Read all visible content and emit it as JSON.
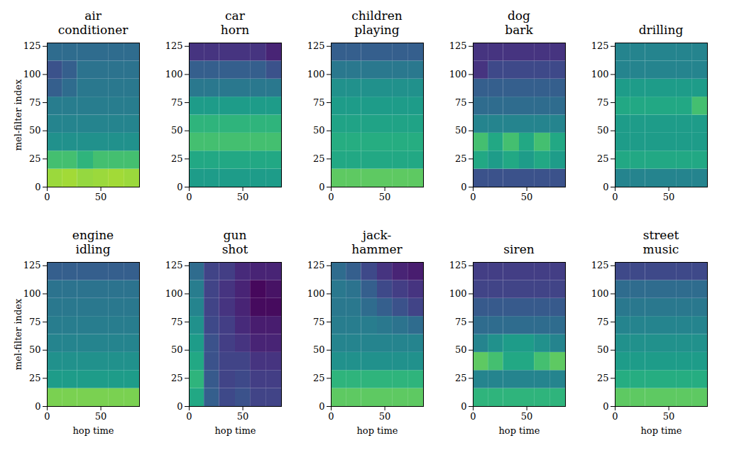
{
  "chart_data": [
    {
      "type": "heatmap",
      "title": "air\nconditioner",
      "ylabel": "mel-filter index",
      "xlim": [
        0,
        86
      ],
      "ylim": [
        0,
        128
      ],
      "xticks": [
        0,
        50
      ],
      "yticks": [
        0,
        25,
        50,
        75,
        100,
        125
      ],
      "x_edges": [
        0,
        14,
        28,
        43,
        57,
        72,
        86
      ],
      "y_edges": [
        0,
        16,
        32,
        48,
        64,
        80,
        96,
        112,
        128
      ],
      "color": "viridis",
      "clim": [
        0,
        1
      ],
      "values": [
        [
          0.85,
          0.86,
          0.84,
          0.85,
          0.86,
          0.85
        ],
        [
          0.7,
          0.7,
          0.65,
          0.7,
          0.7,
          0.7
        ],
        [
          0.5,
          0.5,
          0.5,
          0.5,
          0.5,
          0.5
        ],
        [
          0.45,
          0.45,
          0.45,
          0.45,
          0.45,
          0.45
        ],
        [
          0.42,
          0.42,
          0.42,
          0.42,
          0.42,
          0.42
        ],
        [
          0.3,
          0.35,
          0.4,
          0.4,
          0.4,
          0.4
        ],
        [
          0.25,
          0.3,
          0.38,
          0.38,
          0.38,
          0.38
        ],
        [
          0.35,
          0.35,
          0.35,
          0.35,
          0.35,
          0.35
        ]
      ]
    },
    {
      "type": "heatmap",
      "title": "car\nhorn",
      "xlim": [
        0,
        86
      ],
      "ylim": [
        0,
        128
      ],
      "xticks": [
        0,
        50
      ],
      "yticks": [
        0,
        25,
        50,
        75,
        100,
        125
      ],
      "x_edges": [
        0,
        14,
        28,
        43,
        57,
        72,
        86
      ],
      "y_edges": [
        0,
        16,
        32,
        48,
        64,
        80,
        96,
        112,
        128
      ],
      "color": "viridis",
      "clim": [
        0,
        1
      ],
      "values": [
        [
          0.55,
          0.55,
          0.55,
          0.55,
          0.55,
          0.55
        ],
        [
          0.6,
          0.6,
          0.6,
          0.6,
          0.6,
          0.6
        ],
        [
          0.7,
          0.7,
          0.7,
          0.7,
          0.7,
          0.7
        ],
        [
          0.65,
          0.65,
          0.65,
          0.65,
          0.65,
          0.65
        ],
        [
          0.55,
          0.55,
          0.55,
          0.55,
          0.55,
          0.55
        ],
        [
          0.4,
          0.4,
          0.4,
          0.4,
          0.4,
          0.4
        ],
        [
          0.3,
          0.3,
          0.3,
          0.3,
          0.3,
          0.25
        ],
        [
          0.15,
          0.15,
          0.15,
          0.15,
          0.15,
          0.1
        ]
      ]
    },
    {
      "type": "heatmap",
      "title": "children\nplaying",
      "xlim": [
        0,
        86
      ],
      "ylim": [
        0,
        128
      ],
      "xticks": [
        0,
        50
      ],
      "yticks": [
        0,
        25,
        50,
        75,
        100,
        125
      ],
      "x_edges": [
        0,
        14,
        28,
        43,
        57,
        72,
        86
      ],
      "y_edges": [
        0,
        16,
        32,
        48,
        64,
        80,
        96,
        112,
        128
      ],
      "color": "viridis",
      "clim": [
        0,
        1
      ],
      "values": [
        [
          0.75,
          0.75,
          0.75,
          0.75,
          0.75,
          0.75
        ],
        [
          0.6,
          0.6,
          0.6,
          0.6,
          0.6,
          0.6
        ],
        [
          0.62,
          0.62,
          0.62,
          0.62,
          0.62,
          0.62
        ],
        [
          0.58,
          0.58,
          0.58,
          0.58,
          0.58,
          0.58
        ],
        [
          0.55,
          0.55,
          0.55,
          0.55,
          0.55,
          0.55
        ],
        [
          0.5,
          0.5,
          0.5,
          0.5,
          0.5,
          0.5
        ],
        [
          0.4,
          0.4,
          0.4,
          0.4,
          0.4,
          0.4
        ],
        [
          0.3,
          0.3,
          0.3,
          0.3,
          0.3,
          0.3
        ]
      ]
    },
    {
      "type": "heatmap",
      "title": "dog\nbark",
      "xlim": [
        0,
        86
      ],
      "ylim": [
        0,
        128
      ],
      "xticks": [
        0,
        50
      ],
      "yticks": [
        0,
        25,
        50,
        75,
        100,
        125
      ],
      "x_edges": [
        0,
        14,
        28,
        43,
        57,
        72,
        86
      ],
      "y_edges": [
        0,
        16,
        32,
        48,
        64,
        80,
        96,
        112,
        128
      ],
      "color": "viridis",
      "clim": [
        0,
        1
      ],
      "values": [
        [
          0.25,
          0.25,
          0.25,
          0.25,
          0.25,
          0.25
        ],
        [
          0.6,
          0.55,
          0.6,
          0.55,
          0.6,
          0.55
        ],
        [
          0.7,
          0.6,
          0.7,
          0.6,
          0.7,
          0.6
        ],
        [
          0.45,
          0.45,
          0.45,
          0.45,
          0.45,
          0.45
        ],
        [
          0.35,
          0.35,
          0.35,
          0.35,
          0.35,
          0.35
        ],
        [
          0.3,
          0.3,
          0.3,
          0.3,
          0.3,
          0.3
        ],
        [
          0.15,
          0.22,
          0.22,
          0.22,
          0.22,
          0.22
        ],
        [
          0.15,
          0.15,
          0.15,
          0.15,
          0.15,
          0.15
        ]
      ]
    },
    {
      "type": "heatmap",
      "title": "drilling",
      "xlim": [
        0,
        86
      ],
      "ylim": [
        0,
        128
      ],
      "xticks": [
        0,
        50
      ],
      "yticks": [
        0,
        25,
        50,
        75,
        100,
        125
      ],
      "x_edges": [
        0,
        14,
        28,
        43,
        57,
        72,
        86
      ],
      "y_edges": [
        0,
        16,
        32,
        48,
        64,
        80,
        96,
        112,
        128
      ],
      "color": "viridis",
      "clim": [
        0,
        1
      ],
      "values": [
        [
          0.45,
          0.45,
          0.45,
          0.45,
          0.45,
          0.45
        ],
        [
          0.6,
          0.6,
          0.6,
          0.6,
          0.6,
          0.6
        ],
        [
          0.55,
          0.55,
          0.55,
          0.55,
          0.55,
          0.55
        ],
        [
          0.55,
          0.55,
          0.55,
          0.55,
          0.55,
          0.55
        ],
        [
          0.6,
          0.6,
          0.6,
          0.6,
          0.6,
          0.7
        ],
        [
          0.55,
          0.55,
          0.55,
          0.55,
          0.55,
          0.55
        ],
        [
          0.45,
          0.45,
          0.45,
          0.45,
          0.45,
          0.45
        ],
        [
          0.45,
          0.45,
          0.45,
          0.45,
          0.45,
          0.45
        ]
      ]
    },
    {
      "type": "heatmap",
      "title": "engine\nidling",
      "xlabel": "hop time",
      "ylabel": "mel-filter index",
      "xlim": [
        0,
        86
      ],
      "ylim": [
        0,
        128
      ],
      "xticks": [
        0,
        50
      ],
      "yticks": [
        0,
        25,
        50,
        75,
        100,
        125
      ],
      "x_edges": [
        0,
        14,
        28,
        43,
        57,
        72,
        86
      ],
      "y_edges": [
        0,
        16,
        32,
        48,
        64,
        80,
        96,
        112,
        128
      ],
      "color": "viridis",
      "clim": [
        0,
        1
      ],
      "values": [
        [
          0.8,
          0.8,
          0.8,
          0.8,
          0.8,
          0.8
        ],
        [
          0.55,
          0.55,
          0.55,
          0.55,
          0.55,
          0.55
        ],
        [
          0.5,
          0.5,
          0.5,
          0.5,
          0.5,
          0.5
        ],
        [
          0.45,
          0.45,
          0.45,
          0.45,
          0.45,
          0.45
        ],
        [
          0.42,
          0.42,
          0.42,
          0.42,
          0.42,
          0.42
        ],
        [
          0.4,
          0.4,
          0.4,
          0.4,
          0.4,
          0.4
        ],
        [
          0.38,
          0.38,
          0.38,
          0.38,
          0.38,
          0.38
        ],
        [
          0.3,
          0.3,
          0.3,
          0.3,
          0.3,
          0.3
        ]
      ]
    },
    {
      "type": "heatmap",
      "title": "gun\nshot",
      "xlabel": "hop time",
      "xlim": [
        0,
        86
      ],
      "ylim": [
        0,
        128
      ],
      "xticks": [
        0,
        50
      ],
      "yticks": [
        0,
        25,
        50,
        75,
        100,
        125
      ],
      "x_edges": [
        0,
        14,
        28,
        43,
        57,
        72,
        86
      ],
      "y_edges": [
        0,
        16,
        32,
        48,
        64,
        80,
        96,
        112,
        128
      ],
      "color": "viridis",
      "clim": [
        0,
        1
      ],
      "values": [
        [
          0.6,
          0.3,
          0.22,
          0.25,
          0.2,
          0.2
        ],
        [
          0.65,
          0.28,
          0.2,
          0.22,
          0.18,
          0.18
        ],
        [
          0.6,
          0.25,
          0.2,
          0.2,
          0.15,
          0.15
        ],
        [
          0.55,
          0.25,
          0.18,
          0.15,
          0.1,
          0.1
        ],
        [
          0.5,
          0.22,
          0.18,
          0.12,
          0.08,
          0.08
        ],
        [
          0.45,
          0.2,
          0.15,
          0.1,
          0.03,
          0.03
        ],
        [
          0.42,
          0.2,
          0.15,
          0.1,
          0.02,
          0.05
        ],
        [
          0.35,
          0.2,
          0.18,
          0.12,
          0.1,
          0.1
        ]
      ]
    },
    {
      "type": "heatmap",
      "title": "jack-\nhammer",
      "xlabel": "hop time",
      "xlim": [
        0,
        86
      ],
      "ylim": [
        0,
        128
      ],
      "xticks": [
        0,
        50
      ],
      "yticks": [
        0,
        25,
        50,
        75,
        100,
        125
      ],
      "x_edges": [
        0,
        14,
        28,
        43,
        57,
        72,
        86
      ],
      "y_edges": [
        0,
        16,
        32,
        48,
        64,
        80,
        96,
        112,
        128
      ],
      "color": "viridis",
      "clim": [
        0,
        1
      ],
      "values": [
        [
          0.75,
          0.75,
          0.75,
          0.75,
          0.75,
          0.75
        ],
        [
          0.65,
          0.65,
          0.65,
          0.65,
          0.65,
          0.65
        ],
        [
          0.5,
          0.5,
          0.5,
          0.5,
          0.5,
          0.5
        ],
        [
          0.45,
          0.45,
          0.45,
          0.45,
          0.45,
          0.45
        ],
        [
          0.42,
          0.42,
          0.42,
          0.4,
          0.38,
          0.35
        ],
        [
          0.4,
          0.4,
          0.35,
          0.3,
          0.25,
          0.2
        ],
        [
          0.4,
          0.38,
          0.3,
          0.22,
          0.18,
          0.15
        ],
        [
          0.35,
          0.3,
          0.22,
          0.15,
          0.1,
          0.08
        ]
      ]
    },
    {
      "type": "heatmap",
      "title": "siren",
      "xlabel": "hop time",
      "xlim": [
        0,
        86
      ],
      "ylim": [
        0,
        128
      ],
      "xticks": [
        0,
        50
      ],
      "yticks": [
        0,
        25,
        50,
        75,
        100,
        125
      ],
      "x_edges": [
        0,
        14,
        28,
        43,
        57,
        72,
        86
      ],
      "y_edges": [
        0,
        16,
        32,
        48,
        64,
        80,
        96,
        112,
        128
      ],
      "color": "viridis",
      "clim": [
        0,
        1
      ],
      "values": [
        [
          0.65,
          0.65,
          0.65,
          0.65,
          0.65,
          0.65
        ],
        [
          0.45,
          0.45,
          0.45,
          0.45,
          0.45,
          0.45
        ],
        [
          0.75,
          0.7,
          0.6,
          0.6,
          0.7,
          0.75
        ],
        [
          0.45,
          0.5,
          0.55,
          0.55,
          0.5,
          0.45
        ],
        [
          0.35,
          0.35,
          0.35,
          0.35,
          0.35,
          0.35
        ],
        [
          0.28,
          0.28,
          0.28,
          0.28,
          0.28,
          0.28
        ],
        [
          0.2,
          0.2,
          0.2,
          0.2,
          0.2,
          0.2
        ],
        [
          0.18,
          0.18,
          0.18,
          0.18,
          0.18,
          0.18
        ]
      ]
    },
    {
      "type": "heatmap",
      "title": "street\nmusic",
      "xlabel": "hop time",
      "xlim": [
        0,
        86
      ],
      "ylim": [
        0,
        128
      ],
      "xticks": [
        0,
        50
      ],
      "yticks": [
        0,
        25,
        50,
        75,
        100,
        125
      ],
      "x_edges": [
        0,
        14,
        28,
        43,
        57,
        72,
        86
      ],
      "y_edges": [
        0,
        16,
        32,
        48,
        64,
        80,
        96,
        112,
        128
      ],
      "color": "viridis",
      "clim": [
        0,
        1
      ],
      "values": [
        [
          0.75,
          0.75,
          0.75,
          0.75,
          0.75,
          0.75
        ],
        [
          0.62,
          0.62,
          0.62,
          0.62,
          0.62,
          0.62
        ],
        [
          0.55,
          0.55,
          0.55,
          0.55,
          0.55,
          0.55
        ],
        [
          0.5,
          0.5,
          0.5,
          0.5,
          0.5,
          0.5
        ],
        [
          0.45,
          0.45,
          0.45,
          0.45,
          0.45,
          0.45
        ],
        [
          0.4,
          0.4,
          0.4,
          0.4,
          0.4,
          0.4
        ],
        [
          0.35,
          0.35,
          0.35,
          0.35,
          0.35,
          0.35
        ],
        [
          0.22,
          0.22,
          0.22,
          0.22,
          0.22,
          0.22
        ]
      ]
    }
  ]
}
